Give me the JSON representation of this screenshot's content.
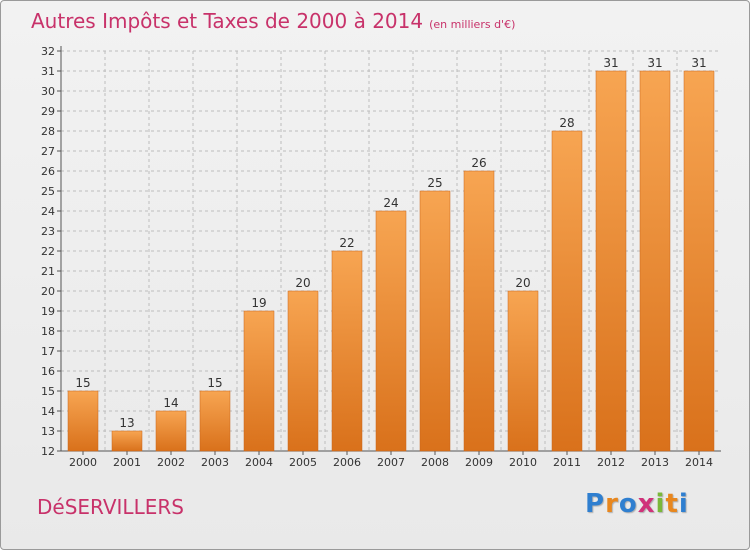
{
  "header": {
    "title": "Autres Impôts et Taxes de 2000 à 2014",
    "subtitle": "(en milliers d'€)"
  },
  "footer": {
    "place": "DéSERVILLERS",
    "logo_text": "Proxiti",
    "logo_letters": [
      "P",
      "r",
      "o",
      "x",
      "i",
      "t",
      "i"
    ],
    "logo_colors": [
      "#2f7fd0",
      "#e8871e",
      "#2f7fd0",
      "#d0327a",
      "#7ab83a",
      "#e8871e",
      "#2f7fd0"
    ]
  },
  "colors": {
    "bar_light": "#f7a552",
    "bar_dark": "#d9711b",
    "grid": "#bdbdbd",
    "title": "#c8326a"
  },
  "chart_data": {
    "type": "bar",
    "categories": [
      "2000",
      "2001",
      "2002",
      "2003",
      "2004",
      "2005",
      "2006",
      "2007",
      "2008",
      "2009",
      "2010",
      "2011",
      "2012",
      "2013",
      "2014"
    ],
    "values": [
      15,
      13,
      14,
      15,
      19,
      20,
      22,
      24,
      25,
      26,
      20,
      28,
      31,
      31,
      31
    ],
    "data_labels": [
      "15",
      "13",
      "14",
      "15",
      "19",
      "20",
      "22",
      "24",
      "25",
      "26",
      "20",
      "28",
      "31",
      "31",
      "31"
    ],
    "yticks": [
      "12",
      "13",
      "14",
      "15",
      "16",
      "17",
      "18",
      "19",
      "20",
      "21",
      "22",
      "23",
      "24",
      "25",
      "26",
      "27",
      "28",
      "29",
      "30",
      "31",
      "32"
    ],
    "ylim": [
      12,
      32
    ],
    "grid": true,
    "title": "Autres Impôts et Taxes de 2000 à 2014",
    "xlabel": "",
    "ylabel": ""
  }
}
